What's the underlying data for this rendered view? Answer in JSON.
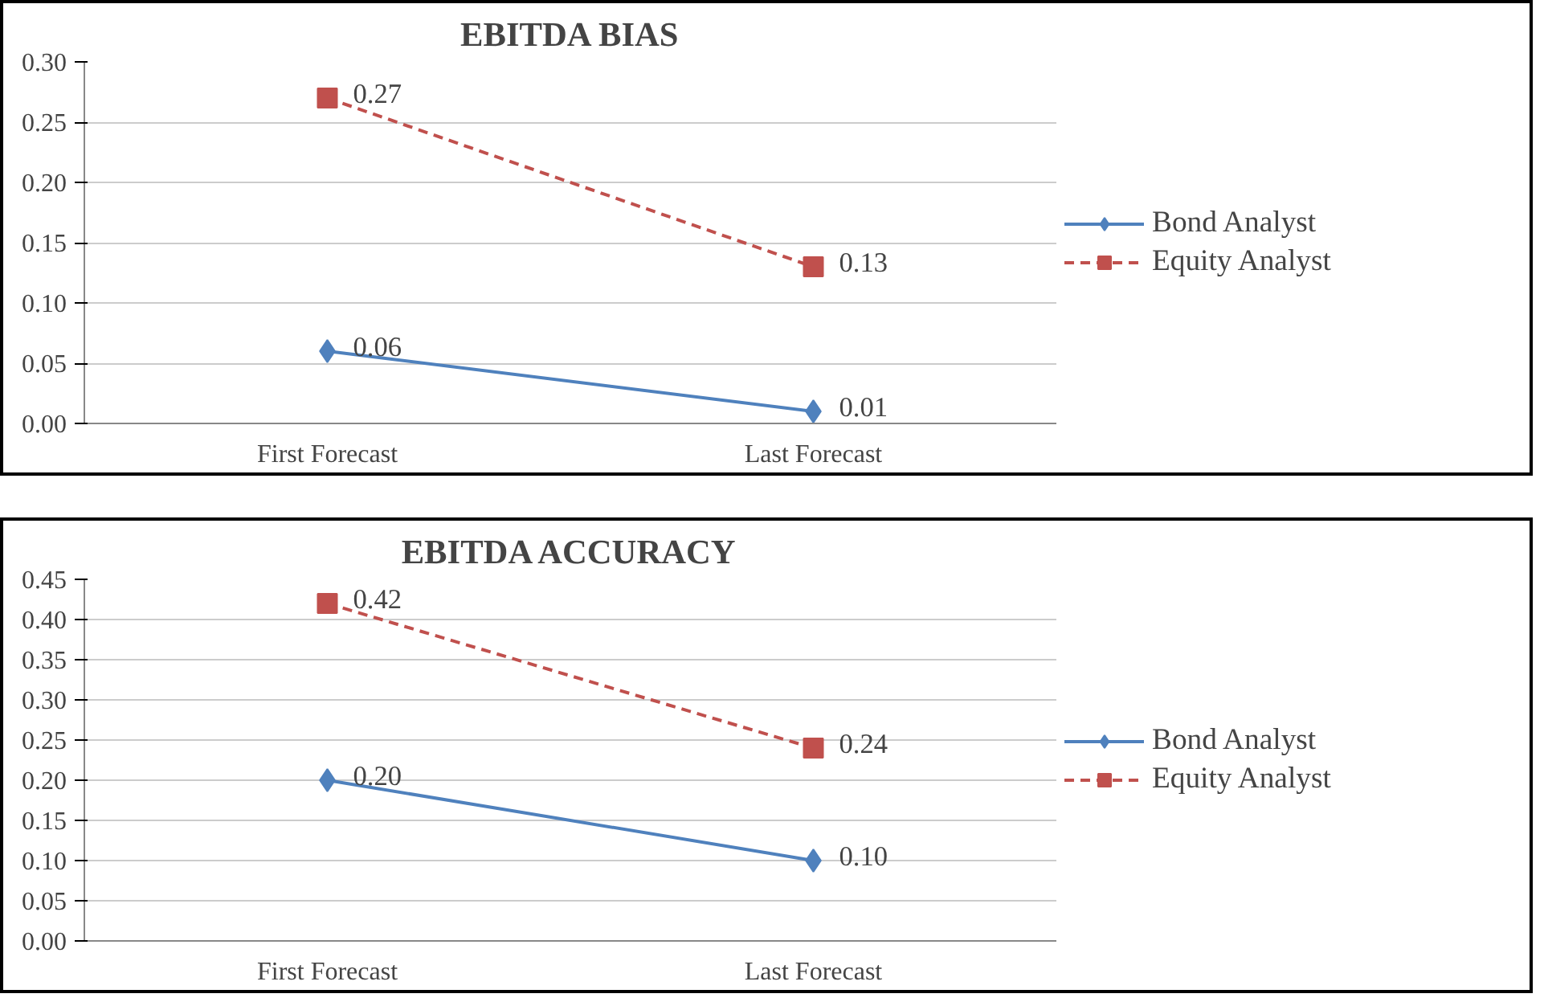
{
  "chart_data": [
    {
      "type": "line",
      "title": "EBITDA BIAS",
      "categories": [
        "First Forecast",
        "Last Forecast"
      ],
      "series": [
        {
          "name": "Bond Analyst",
          "color": "#4f81bd",
          "values": [
            0.06,
            0.01
          ],
          "value_labels": [
            "0.06",
            "0.01"
          ],
          "marker": "diamond",
          "line_style": "solid"
        },
        {
          "name": "Equity Analyst",
          "color": "#c0504d",
          "values": [
            0.27,
            0.13
          ],
          "value_labels": [
            "0.27",
            "0.13"
          ],
          "marker": "square",
          "line_style": "dashed"
        }
      ],
      "ylim": [
        0,
        0.3
      ],
      "yticks": [
        {
          "value": 0,
          "label": "0.00"
        },
        {
          "value": 0.05,
          "label": "0.05"
        },
        {
          "value": 0.1,
          "label": "0.10"
        },
        {
          "value": 0.15,
          "label": "0.15"
        },
        {
          "value": 0.2,
          "label": "0.20"
        },
        {
          "value": 0.25,
          "label": "0.25"
        },
        {
          "value": 0.3,
          "label": "0.30"
        }
      ],
      "grid": "y",
      "legend": "right",
      "data_labels": true
    },
    {
      "type": "line",
      "title": "EBITDA ACCURACY",
      "categories": [
        "First Forecast",
        "Last Forecast"
      ],
      "series": [
        {
          "name": "Bond Analyst",
          "color": "#4f81bd",
          "values": [
            0.2,
            0.1
          ],
          "value_labels": [
            "0.20",
            "0.10"
          ],
          "marker": "diamond",
          "line_style": "solid"
        },
        {
          "name": "Equity Analyst",
          "color": "#c0504d",
          "values": [
            0.42,
            0.24
          ],
          "value_labels": [
            "0.42",
            "0.24"
          ],
          "marker": "square",
          "line_style": "dashed"
        }
      ],
      "ylim": [
        0,
        0.45
      ],
      "yticks": [
        {
          "value": 0,
          "label": "0.00"
        },
        {
          "value": 0.05,
          "label": "0.05"
        },
        {
          "value": 0.1,
          "label": "0.10"
        },
        {
          "value": 0.15,
          "label": "0.15"
        },
        {
          "value": 0.2,
          "label": "0.20"
        },
        {
          "value": 0.25,
          "label": "0.25"
        },
        {
          "value": 0.3,
          "label": "0.30"
        },
        {
          "value": 0.35,
          "label": "0.35"
        },
        {
          "value": 0.4,
          "label": "0.40"
        },
        {
          "value": 0.45,
          "label": "0.45"
        }
      ],
      "grid": "y",
      "legend": "right",
      "data_labels": true
    }
  ]
}
